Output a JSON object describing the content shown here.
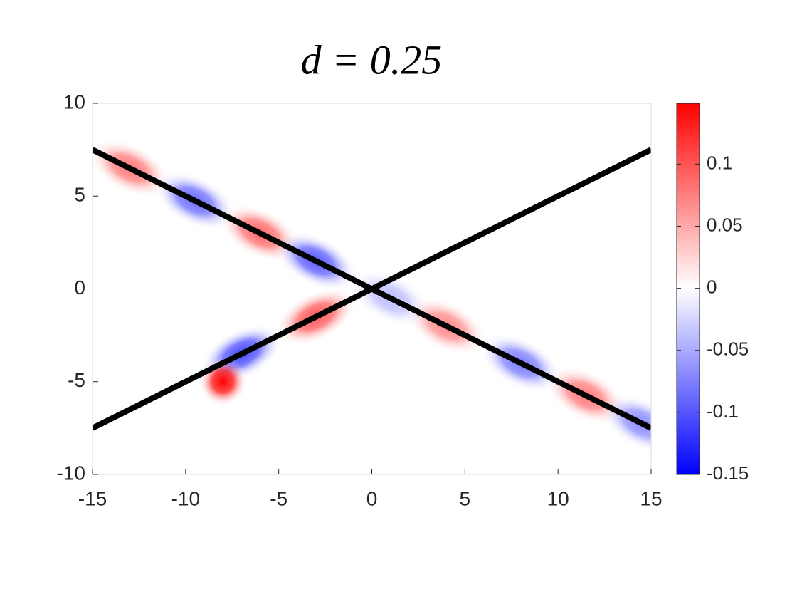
{
  "chart_data": {
    "type": "field",
    "title": "d = 0.25",
    "xlim": [
      -15,
      15
    ],
    "xticks": [
      -15,
      -10,
      -5,
      0,
      5,
      10,
      15
    ],
    "ylim": [
      -10,
      10
    ],
    "yticks": [
      -10,
      -5,
      0,
      5,
      10
    ],
    "clim": [
      -0.15,
      0.149
    ],
    "cticks": [
      -0.15,
      -0.1,
      -0.05,
      0,
      0.05,
      0.1
    ],
    "colormap": [
      "#0000ff",
      "#ffffff",
      "#ff0000"
    ],
    "lines": [
      {
        "color": "#000000",
        "x": [
          -15,
          15
        ],
        "y": [
          7.5,
          -7.5
        ]
      },
      {
        "color": "#000000",
        "x": [
          -15,
          15
        ],
        "y": [
          -7.5,
          7.5
        ]
      }
    ],
    "blobs": {
      "x": [
        -13,
        -9.5,
        -6,
        -3,
        1,
        4,
        8,
        11.5,
        14.5,
        -3,
        -7,
        -8
      ],
      "y": [
        6.5,
        4.75,
        3,
        1.5,
        -0.5,
        -2,
        -4,
        -5.75,
        -7.25,
        -1.5,
        -3.5,
        -5
      ],
      "values": [
        0.08,
        -0.09,
        0.09,
        -0.1,
        -0.04,
        0.07,
        -0.08,
        0.08,
        -0.07,
        0.1,
        -0.11,
        0.149
      ]
    }
  }
}
